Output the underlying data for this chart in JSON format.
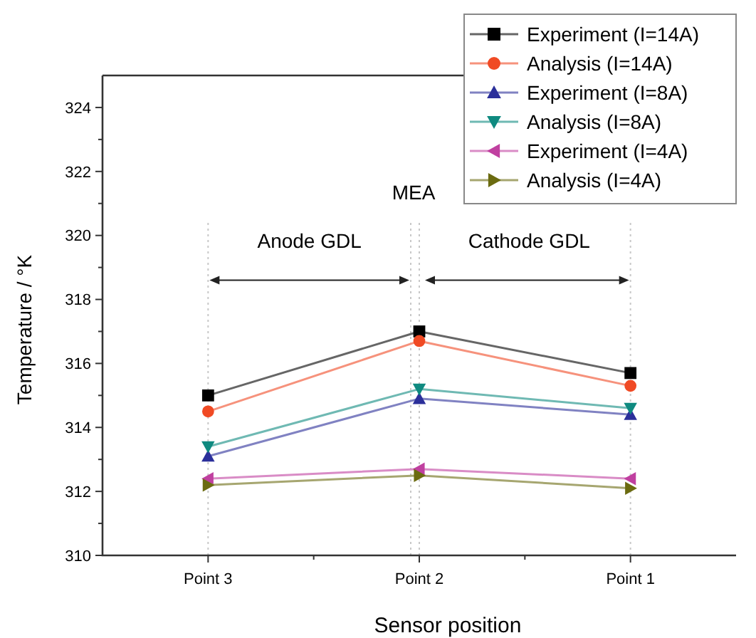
{
  "chart_data": {
    "type": "line",
    "xlabel": "Sensor position",
    "ylabel": "Temperature / °K",
    "categories": [
      "Point 3",
      "Point 2",
      "Point 1"
    ],
    "ylim": [
      310,
      325
    ],
    "yticks": [
      310,
      {
        "value": 311,
        "label": null
      },
      312,
      {
        "value": 313,
        "label": null
      },
      314,
      {
        "value": 315,
        "label": null
      },
      316,
      {
        "value": 317,
        "label": null
      },
      318,
      {
        "value": 319,
        "label": null
      },
      320,
      {
        "value": 321,
        "label": null
      },
      322,
      {
        "value": 323,
        "label": null
      },
      324
    ],
    "series": [
      {
        "name": "Experiment (I=14A)",
        "color": "#000000",
        "marker": "square",
        "values": [
          315.0,
          317.0,
          315.7
        ]
      },
      {
        "name": "Analysis (I=14A)",
        "color": "#f04a24",
        "marker": "circle",
        "values": [
          314.5,
          316.7,
          315.3
        ]
      },
      {
        "name": "Experiment (I=8A)",
        "color": "#2b2f9a",
        "marker": "triangle",
        "values": [
          313.1,
          314.9,
          314.4
        ]
      },
      {
        "name": "Analysis (I=8A)",
        "color": "#0f8a80",
        "marker": "triangle-down",
        "values": [
          313.4,
          315.2,
          314.6
        ]
      },
      {
        "name": "Experiment (I=4A)",
        "color": "#c040a0",
        "marker": "triangle-left",
        "values": [
          312.4,
          312.7,
          312.4
        ]
      },
      {
        "name": "Analysis (I=4A)",
        "color": "#6b6b10",
        "marker": "triangle-right",
        "values": [
          312.2,
          312.5,
          312.1
        ]
      }
    ],
    "ref_lines": [
      {
        "axis": "x",
        "value": "Point 3",
        "line_style": "dotted",
        "color": "#c8c8c8"
      },
      {
        "axis": "x",
        "value": "Point 2",
        "line_style": "dotted",
        "color": "#c8c8c8"
      },
      {
        "axis": "x",
        "value": "Point 1",
        "line_style": "dotted",
        "color": "#c8c8c8"
      }
    ],
    "annotations": [
      "MEA",
      "Anode GDL",
      "Cathode GDL"
    ],
    "legend": "top right",
    "grid": false,
    "line_style": "solid"
  }
}
